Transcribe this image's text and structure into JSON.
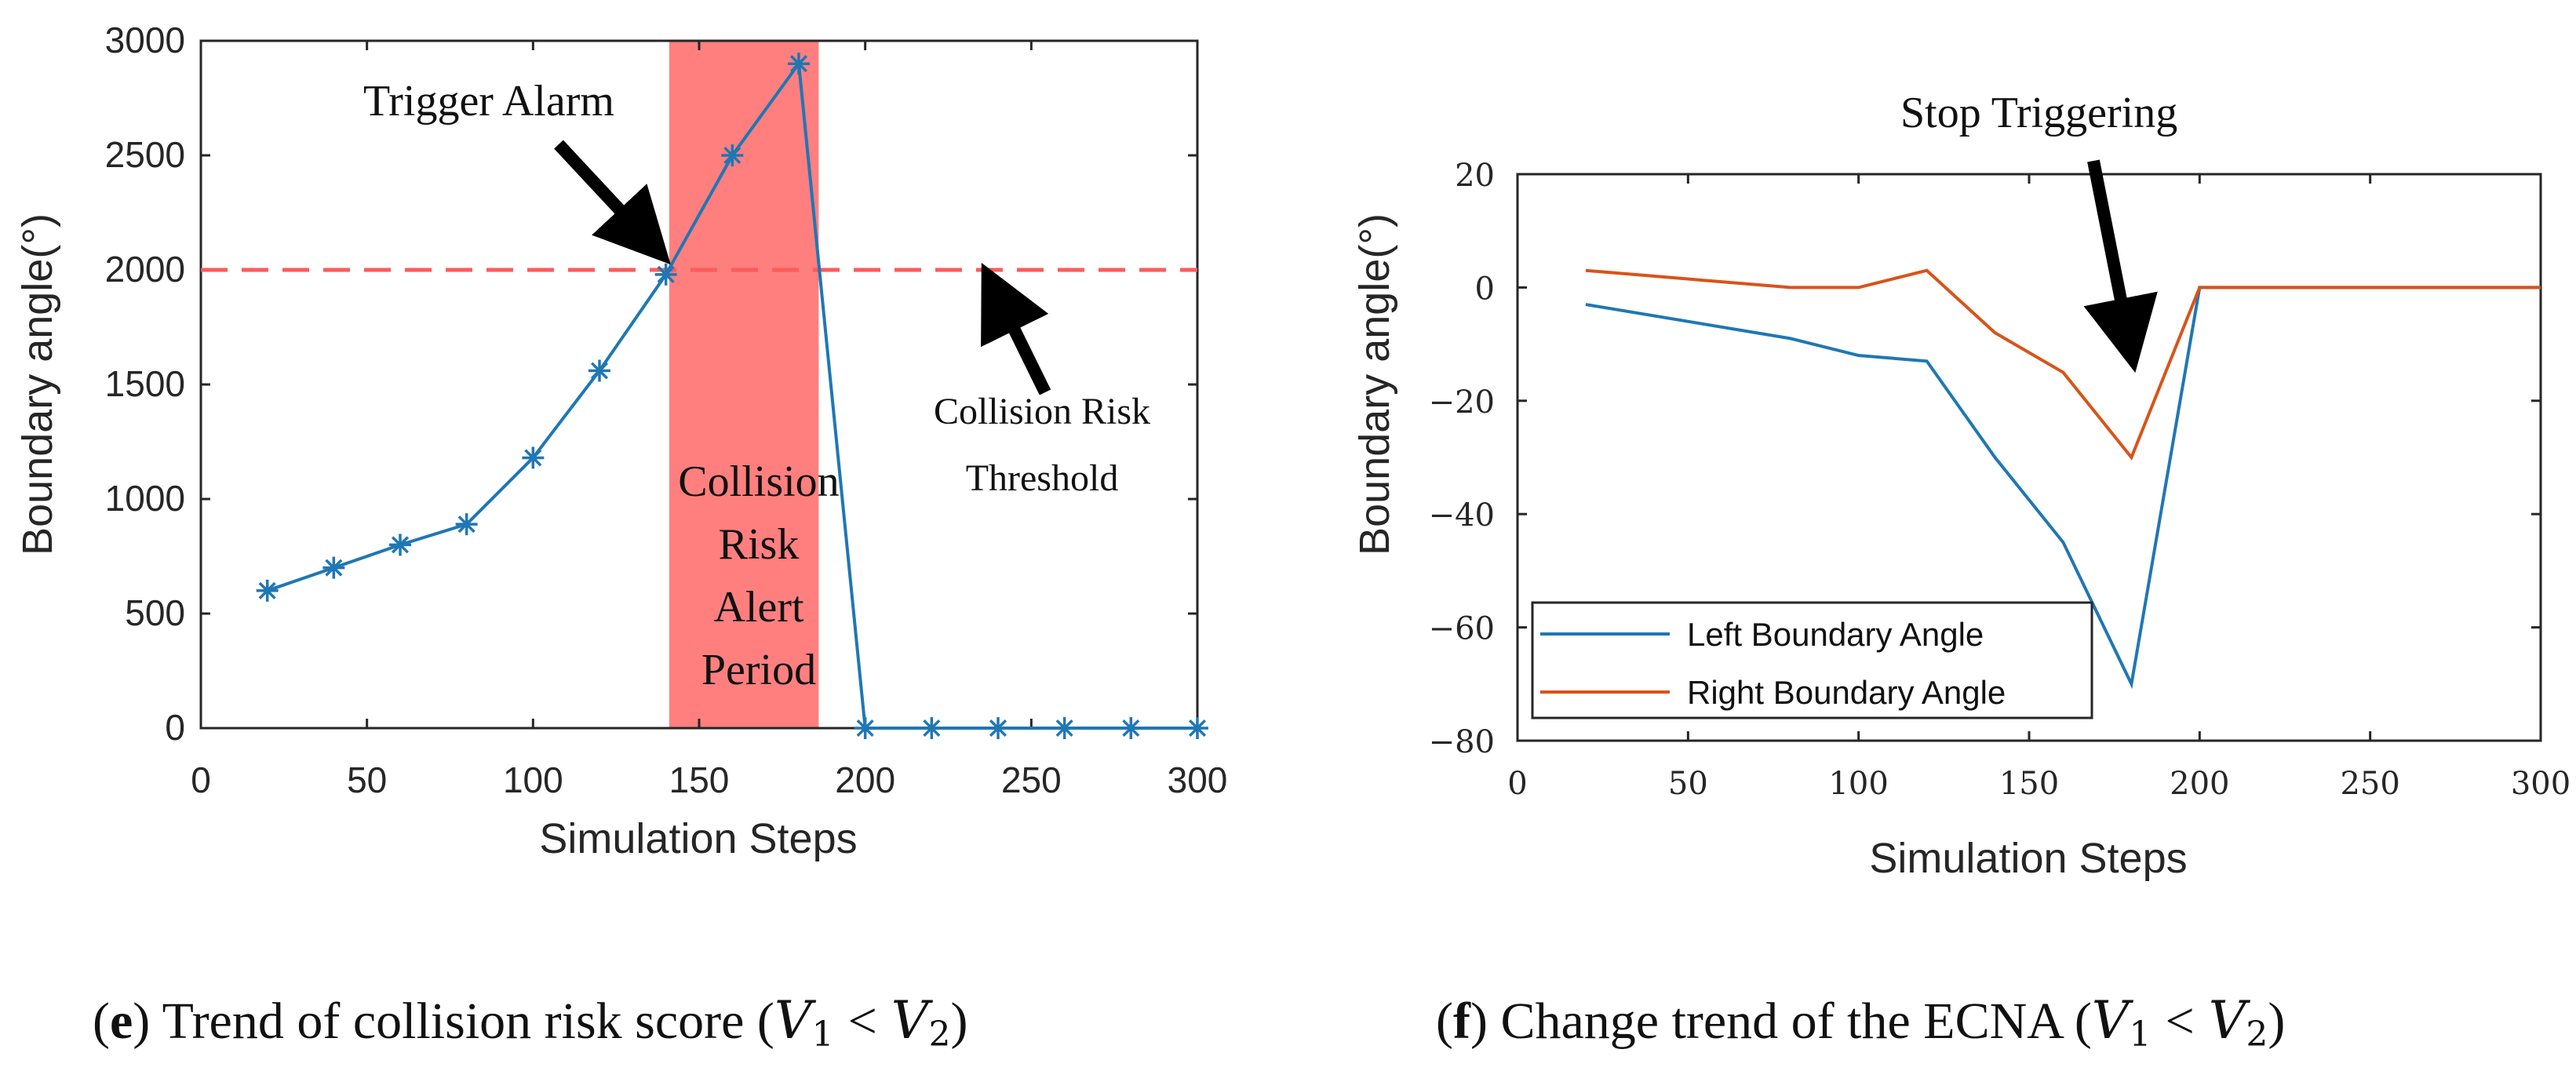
{
  "colors": {
    "blue": "#1f77b4",
    "orange": "#d95319",
    "threshold": "#ff5a5a",
    "alert_fill": "#ff7f7f",
    "arrow": "#000000"
  },
  "chart_data": [
    {
      "id": "e",
      "type": "line",
      "title": "",
      "xlabel": "Simulation Steps",
      "ylabel": "Boundary angle(°)",
      "xlim": [
        0,
        300
      ],
      "ylim": [
        0,
        3000
      ],
      "xticks": [
        0,
        50,
        100,
        150,
        200,
        250,
        300
      ],
      "xtick_labels": [
        "0",
        "50",
        "100",
        "150",
        "200",
        "250",
        "300"
      ],
      "yticks": [
        0,
        500,
        1000,
        1500,
        2000,
        2500,
        3000
      ],
      "ytick_labels": [
        "0",
        "500",
        "1000",
        "1500",
        "2000",
        "2500",
        "3000"
      ],
      "series": [
        {
          "name": "Collision risk score",
          "marker": "*",
          "x": [
            20,
            40,
            60,
            80,
            100,
            120,
            140,
            160,
            180,
            200,
            220,
            240,
            260,
            280,
            300
          ],
          "values": [
            600,
            700,
            800,
            890,
            1180,
            1560,
            1980,
            2500,
            2900,
            0,
            0,
            0,
            0,
            0,
            0
          ]
        }
      ],
      "threshold": {
        "value": 2000,
        "label_line1": "Collision Risk",
        "label_line2": "Threshold"
      },
      "alert_period": {
        "x_start": 141,
        "x_end": 186,
        "label_lines": [
          "Collision",
          "Risk",
          "Alert",
          "Period"
        ]
      },
      "annotations": {
        "trigger": "Trigger Alarm"
      },
      "caption": {
        "letter": "e",
        "text": "Trend of collision risk score",
        "math_v1": "V",
        "math_sub1": "1",
        "math_op": "<",
        "math_v2": "V",
        "math_sub2": "2",
        "open": "(",
        "close": ")"
      }
    },
    {
      "id": "f",
      "type": "line",
      "title": "",
      "xlabel": "Simulation Steps",
      "ylabel": "Boundary angle(°)",
      "xlim": [
        0,
        300
      ],
      "ylim": [
        -80,
        20
      ],
      "xticks": [
        0,
        50,
        100,
        150,
        200,
        250,
        300
      ],
      "xtick_labels": [
        "0",
        "50",
        "100",
        "150",
        "200",
        "250",
        "300"
      ],
      "yticks": [
        -80,
        -60,
        -40,
        -20,
        0,
        20
      ],
      "ytick_labels": [
        "−80",
        "−60",
        "−40",
        "−20",
        "0",
        "20"
      ],
      "series": [
        {
          "name": "Left Boundary Angle",
          "x": [
            20,
            80,
            100,
            120,
            140,
            160,
            180,
            200,
            220,
            240,
            260,
            280,
            300
          ],
          "values": [
            -3,
            -9,
            -12,
            -13,
            -30,
            -45,
            -70,
            0,
            0,
            0,
            0,
            0,
            0
          ]
        },
        {
          "name": "Right Boundary Angle",
          "x": [
            20,
            80,
            100,
            120,
            140,
            160,
            180,
            200,
            220,
            240,
            260,
            280,
            300
          ],
          "values": [
            3,
            0,
            0,
            3,
            -8,
            -15,
            -30,
            0,
            0,
            0,
            0,
            0,
            0
          ]
        }
      ],
      "legend": {
        "placement": "bottom-left"
      },
      "annotations": {
        "stop": "Stop Triggering"
      },
      "caption": {
        "letter": "f",
        "text": "Change trend of the ECNA",
        "math_v1": "V",
        "math_sub1": "1",
        "math_op": "<",
        "math_v2": "V",
        "math_sub2": "2",
        "open": "(",
        "close": ")"
      }
    }
  ]
}
